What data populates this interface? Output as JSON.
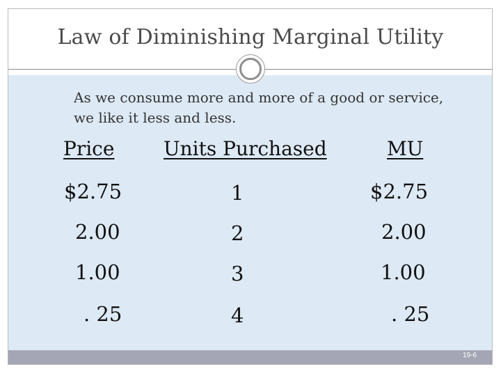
{
  "slide": {
    "title": "Law of Diminishing Marginal Utility",
    "intro_line1": "As we consume more and more of a good or service,",
    "intro_line2": "we like it less and less.",
    "slide_number": "19-6"
  },
  "table": {
    "headers": [
      "Price",
      "Units Purchased",
      "MU"
    ],
    "rows": [
      [
        "$2.75",
        "1",
        "$2.75"
      ],
      [
        "2.00",
        "2",
        "2.00"
      ],
      [
        "1.00",
        "3",
        "1.00"
      ],
      [
        ". 25",
        "4",
        ". 25"
      ]
    ]
  },
  "colors": {
    "content_background": "#dde9f4",
    "bottom_bar": "#a4a6b5",
    "title_text": "#4a4a4a"
  }
}
